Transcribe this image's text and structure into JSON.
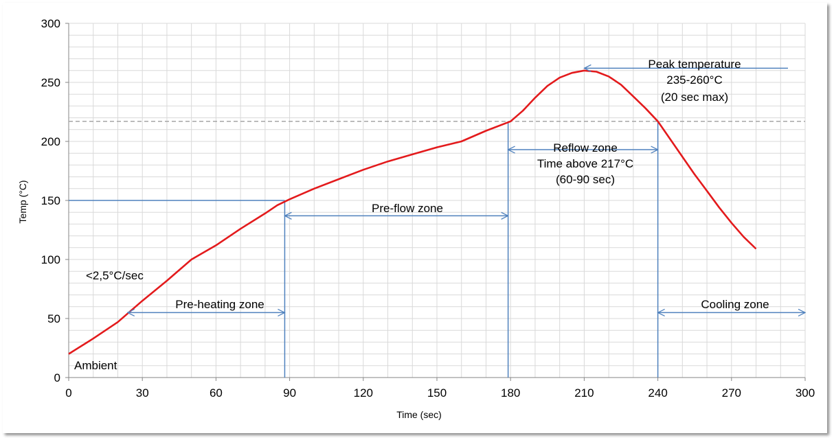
{
  "chart_data": {
    "type": "line",
    "title": "",
    "xlabel": "Time (sec)",
    "ylabel": "Temp (°C)",
    "xlim": [
      0,
      300
    ],
    "ylim": [
      0,
      300
    ],
    "x_ticks": [
      0,
      30,
      60,
      90,
      120,
      150,
      180,
      210,
      240,
      270,
      300
    ],
    "y_ticks": [
      0,
      50,
      100,
      150,
      200,
      250,
      300
    ],
    "grid": true,
    "series": [
      {
        "color": "#e31a1c",
        "x": [
          0,
          10,
          20,
          25,
          30,
          40,
          50,
          60,
          70,
          80,
          85,
          90,
          100,
          110,
          120,
          130,
          140,
          150,
          160,
          170,
          180,
          185,
          190,
          195,
          200,
          205,
          210,
          215,
          220,
          225,
          230,
          235,
          240,
          245,
          250,
          255,
          260,
          265,
          270,
          275,
          280
        ],
        "y": [
          20,
          33,
          47,
          56,
          65,
          82,
          100,
          112,
          126,
          139,
          146,
          151,
          160,
          168,
          176,
          183,
          189,
          195,
          200,
          209,
          217,
          226,
          237,
          247,
          254,
          258,
          260,
          259,
          255,
          248,
          238,
          228,
          217,
          202,
          187,
          172,
          158,
          144,
          131,
          119,
          109
        ]
      }
    ],
    "reference_lines": {
      "temperature_217": {
        "y": 217,
        "color": "#a6a6a6",
        "style": "dashed"
      },
      "preheat_level_150": {
        "y": 150,
        "x_from": 0,
        "x_to": 88,
        "color": "#4f81bd"
      },
      "verticals": [
        {
          "x": 88,
          "y_from": 0,
          "y_to": 150,
          "color": "#4f81bd"
        },
        {
          "x": 179,
          "y_from": 0,
          "y_to": 217,
          "color": "#4f81bd"
        },
        {
          "x": 240,
          "y_from": 0,
          "y_to": 217,
          "color": "#4f81bd"
        }
      ]
    },
    "zone_arrows": [
      {
        "from": [
          24,
          55
        ],
        "to": [
          88,
          55
        ],
        "heads": "both",
        "color": "#4f81bd"
      },
      {
        "from": [
          88,
          137
        ],
        "to": [
          179,
          137
        ],
        "heads": "both",
        "color": "#4f81bd"
      },
      {
        "from": [
          179,
          193
        ],
        "to": [
          240,
          193
        ],
        "heads": "both",
        "color": "#4f81bd"
      },
      {
        "from": [
          240,
          55
        ],
        "to": [
          300,
          55
        ],
        "heads": "both",
        "color": "#4f81bd"
      },
      {
        "from": [
          293,
          262
        ],
        "to": [
          210,
          262
        ],
        "heads": "end",
        "color": "#4f81bd"
      }
    ],
    "annotations": [
      {
        "id": "ambient",
        "text": "Ambient"
      },
      {
        "id": "ramp",
        "text": "<2,5°C/sec"
      },
      {
        "id": "preheat",
        "text": "Pre-heating zone"
      },
      {
        "id": "preflow",
        "text": "Pre-flow zone"
      },
      {
        "id": "reflow1",
        "text": "Reflow zone"
      },
      {
        "id": "reflow2",
        "text": "Time above 217°C"
      },
      {
        "id": "reflow3",
        "text": "(60-90 sec)"
      },
      {
        "id": "peak1",
        "text": "Peak temperature"
      },
      {
        "id": "peak2",
        "text": "235-260°C"
      },
      {
        "id": "peak3",
        "text": "(20 sec max)"
      },
      {
        "id": "cooling",
        "text": "Cooling zone"
      }
    ]
  }
}
